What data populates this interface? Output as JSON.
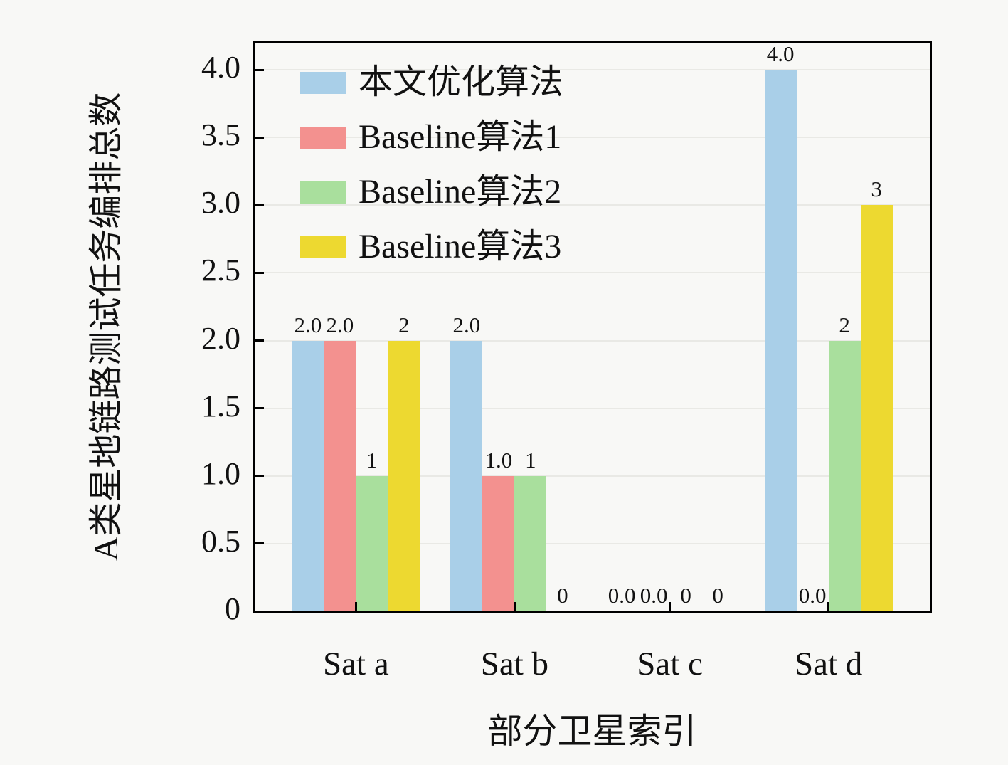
{
  "chart_data": {
    "type": "bar",
    "title": "",
    "xlabel": "部分卫星索引",
    "ylabel": "A类星地链路测试任务编排总数",
    "categories": [
      "Sat a",
      "Sat b",
      "Sat c",
      "Sat d"
    ],
    "series": [
      {
        "name": "本文优化算法",
        "color": "#A9CFE8",
        "values": [
          2,
          2,
          0,
          4
        ],
        "labels": [
          "2.0",
          "2.0",
          "0.0",
          "4.0"
        ]
      },
      {
        "name": "Baseline算法1",
        "color": "#F3918F",
        "values": [
          2,
          1,
          0,
          0
        ],
        "labels": [
          "2.0",
          "1.0",
          "0.0",
          "0.0"
        ]
      },
      {
        "name": "Baseline算法2",
        "color": "#A9DF9D",
        "values": [
          1,
          1,
          0,
          2
        ],
        "labels": [
          "1",
          "1",
          "0",
          "2"
        ]
      },
      {
        "name": "Baseline算法3",
        "color": "#EDD930",
        "values": [
          2,
          0,
          0,
          3
        ],
        "labels": [
          "2",
          "0",
          "0",
          "3"
        ]
      }
    ],
    "yticks": [
      "0",
      "0.5",
      "1.0",
      "1.5",
      "2.0",
      "2.5",
      "3.0",
      "3.5",
      "4.0"
    ],
    "ylim": [
      0,
      4.2
    ],
    "grid": true,
    "legend_position": "upper-left",
    "axis_color": "#000000",
    "grid_color": "#e9e9e5"
  }
}
